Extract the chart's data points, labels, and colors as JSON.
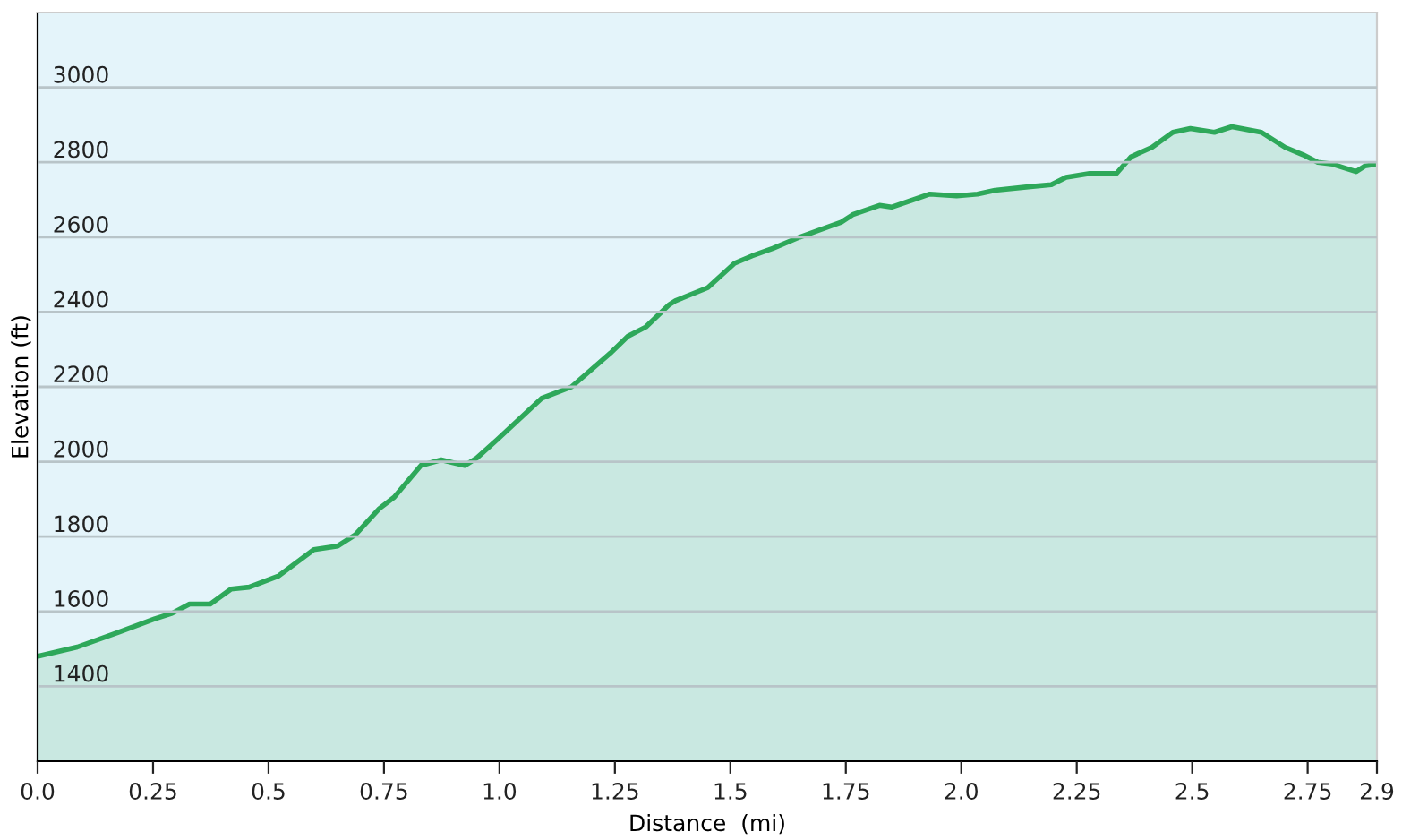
{
  "chart_data": {
    "type": "area",
    "xlabel": "Distance  (mi)",
    "ylabel": "Elevation (ft)",
    "x": [
      0,
      0.086,
      0.176,
      0.253,
      0.291,
      0.329,
      0.374,
      0.419,
      0.458,
      0.522,
      0.598,
      0.65,
      0.688,
      0.74,
      0.772,
      0.83,
      0.874,
      0.925,
      0.951,
      0.996,
      1.092,
      1.156,
      1.24,
      1.278,
      1.317,
      1.368,
      1.381,
      1.451,
      1.509,
      1.547,
      1.592,
      1.65,
      1.74,
      1.765,
      1.823,
      1.849,
      1.932,
      1.99,
      2.035,
      2.073,
      2.15,
      2.195,
      2.227,
      2.278,
      2.336,
      2.368,
      2.413,
      2.458,
      2.496,
      2.548,
      2.586,
      2.65,
      2.701,
      2.74,
      2.772,
      2.804,
      2.855,
      2.874,
      2.9
    ],
    "series": [
      {
        "color": "#2ea85a",
        "values": [
          1480,
          1505,
          1545,
          1580,
          1595,
          1620,
          1620,
          1660,
          1665,
          1695,
          1765,
          1775,
          1805,
          1875,
          1905,
          1990,
          2005,
          1990,
          2010,
          2060,
          2170,
          2200,
          2290,
          2335,
          2360,
          2420,
          2430,
          2465,
          2530,
          2550,
          2570,
          2600,
          2640,
          2660,
          2685,
          2680,
          2715,
          2710,
          2715,
          2725,
          2735,
          2740,
          2760,
          2770,
          2770,
          2815,
          2840,
          2880,
          2890,
          2880,
          2895,
          2880,
          2840,
          2820,
          2800,
          2795,
          2775,
          2790,
          2795
        ]
      }
    ],
    "xlim": [
      0,
      2.9
    ],
    "xticks": [
      {
        "value": 0,
        "label": "0.0"
      },
      0.25,
      0.5,
      0.75,
      {
        "value": 1,
        "label": "1.0"
      },
      1.25,
      1.5,
      1.75,
      {
        "value": 2,
        "label": "2.0"
      },
      2.25,
      2.5,
      2.75,
      2.9
    ],
    "ylim": [
      1200,
      3200
    ],
    "yticks": [
      1400,
      1600,
      1800,
      2000,
      2200,
      2400,
      2600,
      2800,
      3000
    ],
    "grid": "y",
    "marker": "none",
    "line_style": "solid",
    "legend": false
  }
}
